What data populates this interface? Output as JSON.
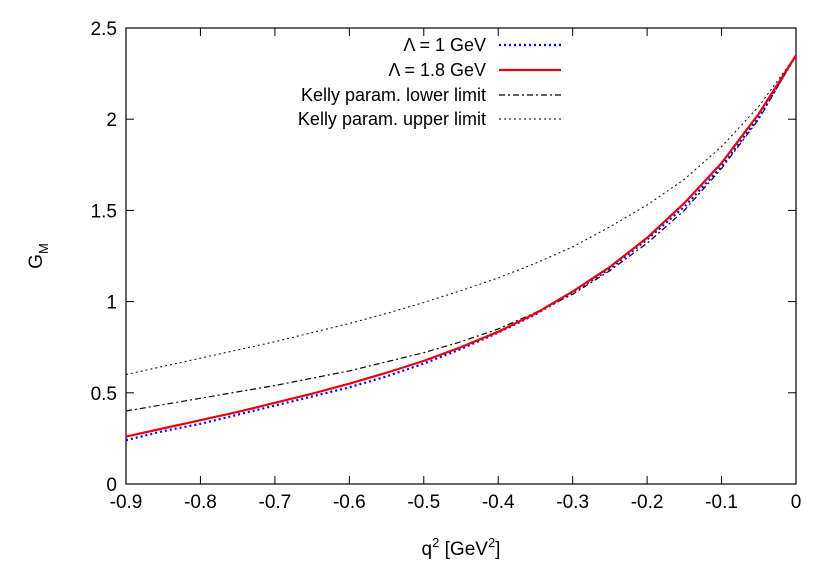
{
  "chart_data": {
    "type": "line",
    "title": "",
    "xlabel": {
      "base": "q",
      "sup": "2",
      "unit_open": " [GeV",
      "unit_sup": "2",
      "unit_close": "]"
    },
    "ylabel": {
      "base": "G",
      "sub": "M"
    },
    "xlim": [
      -0.9,
      0
    ],
    "ylim": [
      0,
      2.5
    ],
    "xticks": [
      -0.9,
      -0.8,
      -0.7,
      -0.6,
      -0.5,
      -0.4,
      -0.3,
      -0.2,
      -0.1,
      0
    ],
    "xtick_labels": [
      "-0.9",
      "-0.8",
      "-0.7",
      "-0.6",
      "-0.5",
      "-0.4",
      "-0.3",
      "-0.2",
      "-0.1",
      "0"
    ],
    "yticks": [
      0,
      0.5,
      1,
      1.5,
      2,
      2.5
    ],
    "ytick_labels": [
      "0",
      "0.5",
      "1",
      "1.5",
      "2",
      "2.5"
    ],
    "grid": false,
    "legend_position": "top-right",
    "series": [
      {
        "name": "Λ = 1 GeV",
        "color": "#0000ff",
        "style": "dotted",
        "x": [
          -0.9,
          -0.85,
          -0.8,
          -0.75,
          -0.7,
          -0.65,
          -0.6,
          -0.55,
          -0.5,
          -0.45,
          -0.4,
          -0.35,
          -0.3,
          -0.25,
          -0.2,
          -0.15,
          -0.1,
          -0.05,
          0
        ],
        "y": [
          0.24,
          0.29,
          0.33,
          0.38,
          0.43,
          0.48,
          0.53,
          0.59,
          0.66,
          0.74,
          0.83,
          0.93,
          1.05,
          1.18,
          1.34,
          1.52,
          1.74,
          2.01,
          2.35
        ]
      },
      {
        "name": "Λ = 1.8 GeV",
        "color": "#e8000b",
        "style": "solid",
        "x": [
          -0.9,
          -0.85,
          -0.8,
          -0.75,
          -0.7,
          -0.65,
          -0.6,
          -0.55,
          -0.5,
          -0.45,
          -0.4,
          -0.35,
          -0.3,
          -0.25,
          -0.2,
          -0.15,
          -0.1,
          -0.05,
          0
        ],
        "y": [
          0.26,
          0.305,
          0.35,
          0.395,
          0.445,
          0.495,
          0.55,
          0.61,
          0.675,
          0.75,
          0.835,
          0.935,
          1.055,
          1.19,
          1.35,
          1.54,
          1.76,
          2.03,
          2.35
        ]
      },
      {
        "name": "Kelly param. lower limit",
        "color": "#000000",
        "style": "dashdot",
        "x": [
          -0.9,
          -0.85,
          -0.8,
          -0.75,
          -0.7,
          -0.65,
          -0.6,
          -0.55,
          -0.5,
          -0.45,
          -0.4,
          -0.35,
          -0.3,
          -0.25,
          -0.2,
          -0.15,
          -0.1,
          -0.05,
          0
        ],
        "y": [
          0.4,
          0.435,
          0.47,
          0.505,
          0.54,
          0.58,
          0.62,
          0.67,
          0.72,
          0.78,
          0.85,
          0.94,
          1.04,
          1.17,
          1.32,
          1.5,
          1.73,
          2.0,
          2.35
        ]
      },
      {
        "name": "Kelly param. upper limit",
        "color": "#000000",
        "style": "fine-dotted",
        "x": [
          -0.9,
          -0.85,
          -0.8,
          -0.75,
          -0.7,
          -0.65,
          -0.6,
          -0.55,
          -0.5,
          -0.45,
          -0.4,
          -0.35,
          -0.3,
          -0.25,
          -0.2,
          -0.15,
          -0.1,
          -0.05,
          0
        ],
        "y": [
          0.6,
          0.645,
          0.69,
          0.735,
          0.78,
          0.83,
          0.88,
          0.935,
          0.995,
          1.06,
          1.13,
          1.21,
          1.3,
          1.41,
          1.53,
          1.67,
          1.85,
          2.07,
          2.35
        ]
      }
    ]
  }
}
